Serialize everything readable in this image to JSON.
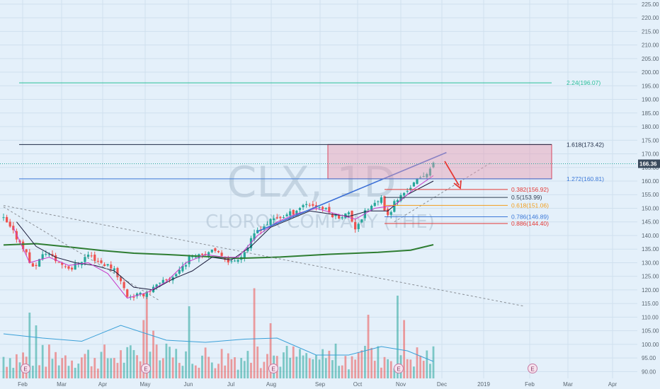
{
  "watermark": {
    "symbol": "CLX, 1D",
    "company": "CLOROX COMPANY (THE)"
  },
  "price_badge": "166.36",
  "colors": {
    "background": "#e4f0fa",
    "grid": "#cfe0ee",
    "up": "#26a69a",
    "down": "#ef5350",
    "ma_short": "#c738c7",
    "ma_mid": "#1a1a3a",
    "ma_long": "#2e7d32",
    "trendline": "#3b6fd6",
    "badge": "#3a4a5c",
    "vol_ma": "#3aa0d8"
  },
  "chart_data": {
    "type": "candlestick",
    "symbol": "CLX",
    "interval": "1D",
    "x_labels": [
      "Feb",
      "Mar",
      "Apr",
      "May",
      "Jun",
      "Jul",
      "Aug",
      "Sep",
      "Oct",
      "Nov",
      "Dec",
      "2019",
      "Feb",
      "Mar",
      "Apr"
    ],
    "y_ticks": [
      90,
      95,
      100,
      105,
      110,
      115,
      120,
      125,
      130,
      135,
      140,
      145,
      150,
      155,
      160,
      165,
      170,
      175,
      180,
      185,
      190,
      195,
      200,
      205,
      210,
      215,
      220,
      225
    ],
    "ylim": [
      87.5,
      226
    ],
    "last_price": 166.36,
    "price_path": [
      [
        0,
        146
      ],
      [
        3,
        141
      ],
      [
        6,
        136
      ],
      [
        9,
        128
      ],
      [
        13,
        134
      ],
      [
        17,
        130
      ],
      [
        21,
        128
      ],
      [
        26,
        133
      ],
      [
        30,
        130
      ],
      [
        34,
        128
      ],
      [
        38,
        118
      ],
      [
        42,
        118
      ],
      [
        48,
        122
      ],
      [
        53,
        126
      ],
      [
        58,
        133
      ],
      [
        63,
        134
      ],
      [
        67,
        133
      ],
      [
        70,
        130
      ],
      [
        74,
        134
      ],
      [
        78,
        142
      ],
      [
        83,
        146
      ],
      [
        88,
        148
      ],
      [
        93,
        152
      ],
      [
        98,
        150
      ],
      [
        102,
        147
      ],
      [
        106,
        148
      ],
      [
        108,
        143
      ],
      [
        112,
        150
      ],
      [
        116,
        153
      ],
      [
        118,
        147
      ],
      [
        120,
        152
      ],
      [
        124,
        157
      ],
      [
        128,
        161
      ],
      [
        132,
        166
      ]
    ],
    "ma_short": [
      [
        3,
        143
      ],
      [
        8,
        130
      ],
      [
        14,
        132
      ],
      [
        20,
        129
      ],
      [
        26,
        130
      ],
      [
        32,
        126
      ],
      [
        38,
        117
      ],
      [
        44,
        119
      ],
      [
        50,
        123
      ],
      [
        56,
        130
      ],
      [
        62,
        133
      ],
      [
        68,
        132
      ],
      [
        72,
        132
      ],
      [
        78,
        140
      ],
      [
        84,
        145
      ],
      [
        90,
        148
      ],
      [
        96,
        150
      ],
      [
        102,
        148
      ],
      [
        108,
        146
      ],
      [
        114,
        150
      ],
      [
        120,
        151
      ],
      [
        126,
        157
      ],
      [
        132,
        162
      ]
    ],
    "ma_mid": [
      [
        4,
        145
      ],
      [
        10,
        136
      ],
      [
        16,
        132
      ],
      [
        22,
        130
      ],
      [
        28,
        129
      ],
      [
        34,
        127
      ],
      [
        40,
        121
      ],
      [
        46,
        120
      ],
      [
        52,
        124
      ],
      [
        58,
        127
      ],
      [
        64,
        132
      ],
      [
        70,
        131
      ],
      [
        76,
        136
      ],
      [
        82,
        143
      ],
      [
        88,
        146
      ],
      [
        94,
        149
      ],
      [
        100,
        148
      ],
      [
        106,
        147
      ],
      [
        112,
        149
      ],
      [
        118,
        149
      ],
      [
        124,
        155
      ],
      [
        132,
        160
      ]
    ],
    "ma_long": [
      [
        0,
        136.5
      ],
      [
        10,
        137
      ],
      [
        20,
        135.8
      ],
      [
        30,
        134.5
      ],
      [
        40,
        133.5
      ],
      [
        50,
        133
      ],
      [
        60,
        132.4
      ],
      [
        72,
        131.6
      ],
      [
        85,
        132.1
      ],
      [
        100,
        133.1
      ],
      [
        115,
        133.8
      ],
      [
        125,
        134.6
      ],
      [
        132,
        136.6
      ]
    ],
    "volume": {
      "values_scaled": "relative heights 0-1 (no axis printed)",
      "ma": [
        [
          0,
          0.42
        ],
        [
          12,
          0.38
        ],
        [
          24,
          0.35
        ],
        [
          36,
          0.5
        ],
        [
          50,
          0.36
        ],
        [
          62,
          0.34
        ],
        [
          74,
          0.37
        ],
        [
          84,
          0.38
        ],
        [
          96,
          0.22
        ],
        [
          106,
          0.22
        ],
        [
          116,
          0.3
        ],
        [
          124,
          0.26
        ],
        [
          132,
          0.16
        ]
      ]
    },
    "levels": [
      {
        "label": "2.24(196.07)",
        "value": 196.07,
        "color": "#2bbf9a"
      },
      {
        "label": "1.618(173.42)",
        "value": 173.42,
        "color": "#1d2a44"
      },
      {
        "label": "1.272(160.81)",
        "value": 160.81,
        "color": "#3b78d8"
      }
    ],
    "fib_retracement": [
      {
        "label": "0.382(156.92)",
        "value": 156.92,
        "color": "#e53935"
      },
      {
        "label": "0.5(153.99)",
        "value": 153.99,
        "color": "#2f3e52"
      },
      {
        "label": "0.618(151.06)",
        "value": 151.06,
        "color": "#f29d1a"
      },
      {
        "label": "0.786(146.89)",
        "value": 146.89,
        "color": "#3b78d8"
      },
      {
        "label": "0.886(144.40)",
        "value": 144.4,
        "color": "#e53935"
      }
    ],
    "target_zone": {
      "low": 160.81,
      "high": 173.42,
      "color": "#e89ab0"
    },
    "trendline_rising": [
      [
        78,
        141.5
      ],
      [
        136,
        170.5
      ]
    ],
    "channel_support": [
      [
        120,
        145
      ],
      [
        150,
        167
      ]
    ],
    "downtrend": [
      [
        0,
        151
      ],
      [
        160,
        114
      ]
    ],
    "trendline_short": [
      [
        0,
        150.5
      ],
      [
        48,
        116
      ]
    ],
    "events_label": "E",
    "event_positions": [
      2,
      38,
      77,
      120,
      162
    ]
  }
}
